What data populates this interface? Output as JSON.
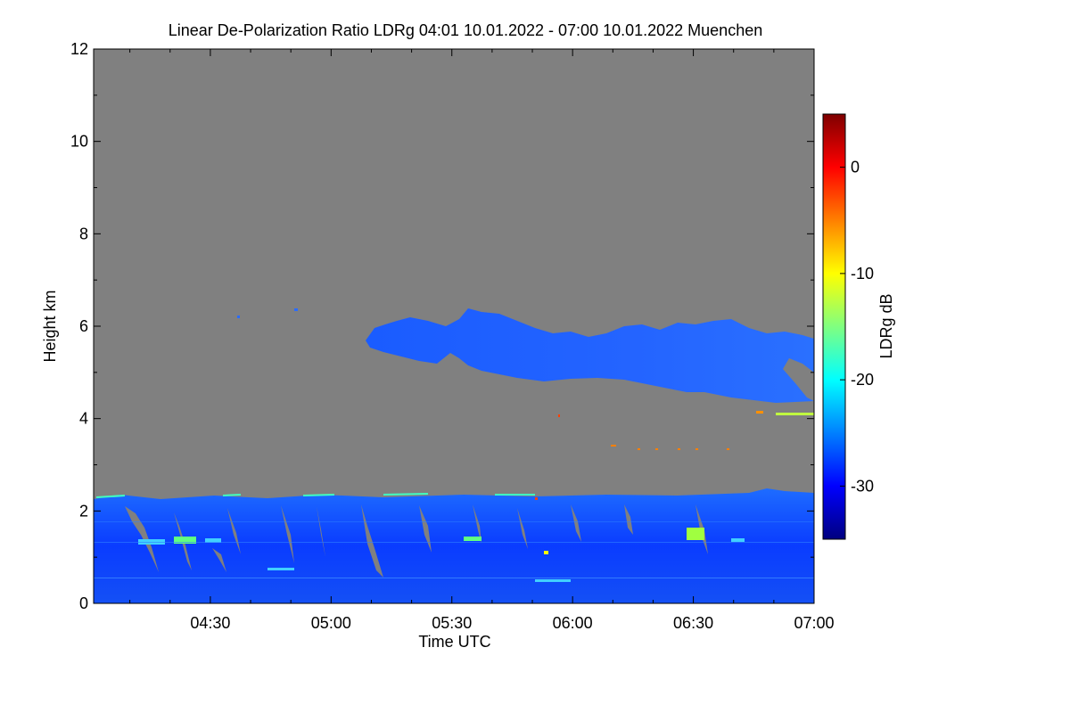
{
  "chart_data": {
    "type": "heatmap",
    "title": "Linear De-Polarization Ratio LDRg   04:01 10.01.2022 - 07:00 10.01.2022 Muenchen",
    "xlabel": "Time UTC",
    "ylabel": "Height km",
    "colorbar_label": "LDRg dB",
    "xlim": [
      "04:01",
      "07:00"
    ],
    "ylim": [
      0,
      12
    ],
    "x_ticks": [
      "04:30",
      "05:00",
      "05:30",
      "06:00",
      "06:30",
      "07:00"
    ],
    "y_ticks": [
      0,
      2,
      4,
      6,
      8,
      10,
      12
    ],
    "colorbar_range": [
      -35,
      5
    ],
    "colorbar_ticks": [
      0,
      -10,
      -20,
      -30
    ],
    "no_data_color": "#808080",
    "colormap": [
      "#00007f",
      "#0000ff",
      "#0080ff",
      "#00ffff",
      "#80ff80",
      "#ffff00",
      "#ff8000",
      "#ff0000",
      "#7f0000"
    ],
    "regions": [
      {
        "name": "boundary layer",
        "x_range": [
          "04:01",
          "07:00"
        ],
        "height_km": [
          0,
          2.3
        ],
        "ldr_db_typical": -30,
        "ldr_db_range": [
          -33,
          -15
        ]
      },
      {
        "name": "elevated layer",
        "x_range": [
          "05:05",
          "07:00"
        ],
        "height_km": [
          4.5,
          6.3
        ],
        "ldr_db_typical": -27,
        "ldr_db_range": [
          -30,
          -22
        ]
      }
    ]
  }
}
